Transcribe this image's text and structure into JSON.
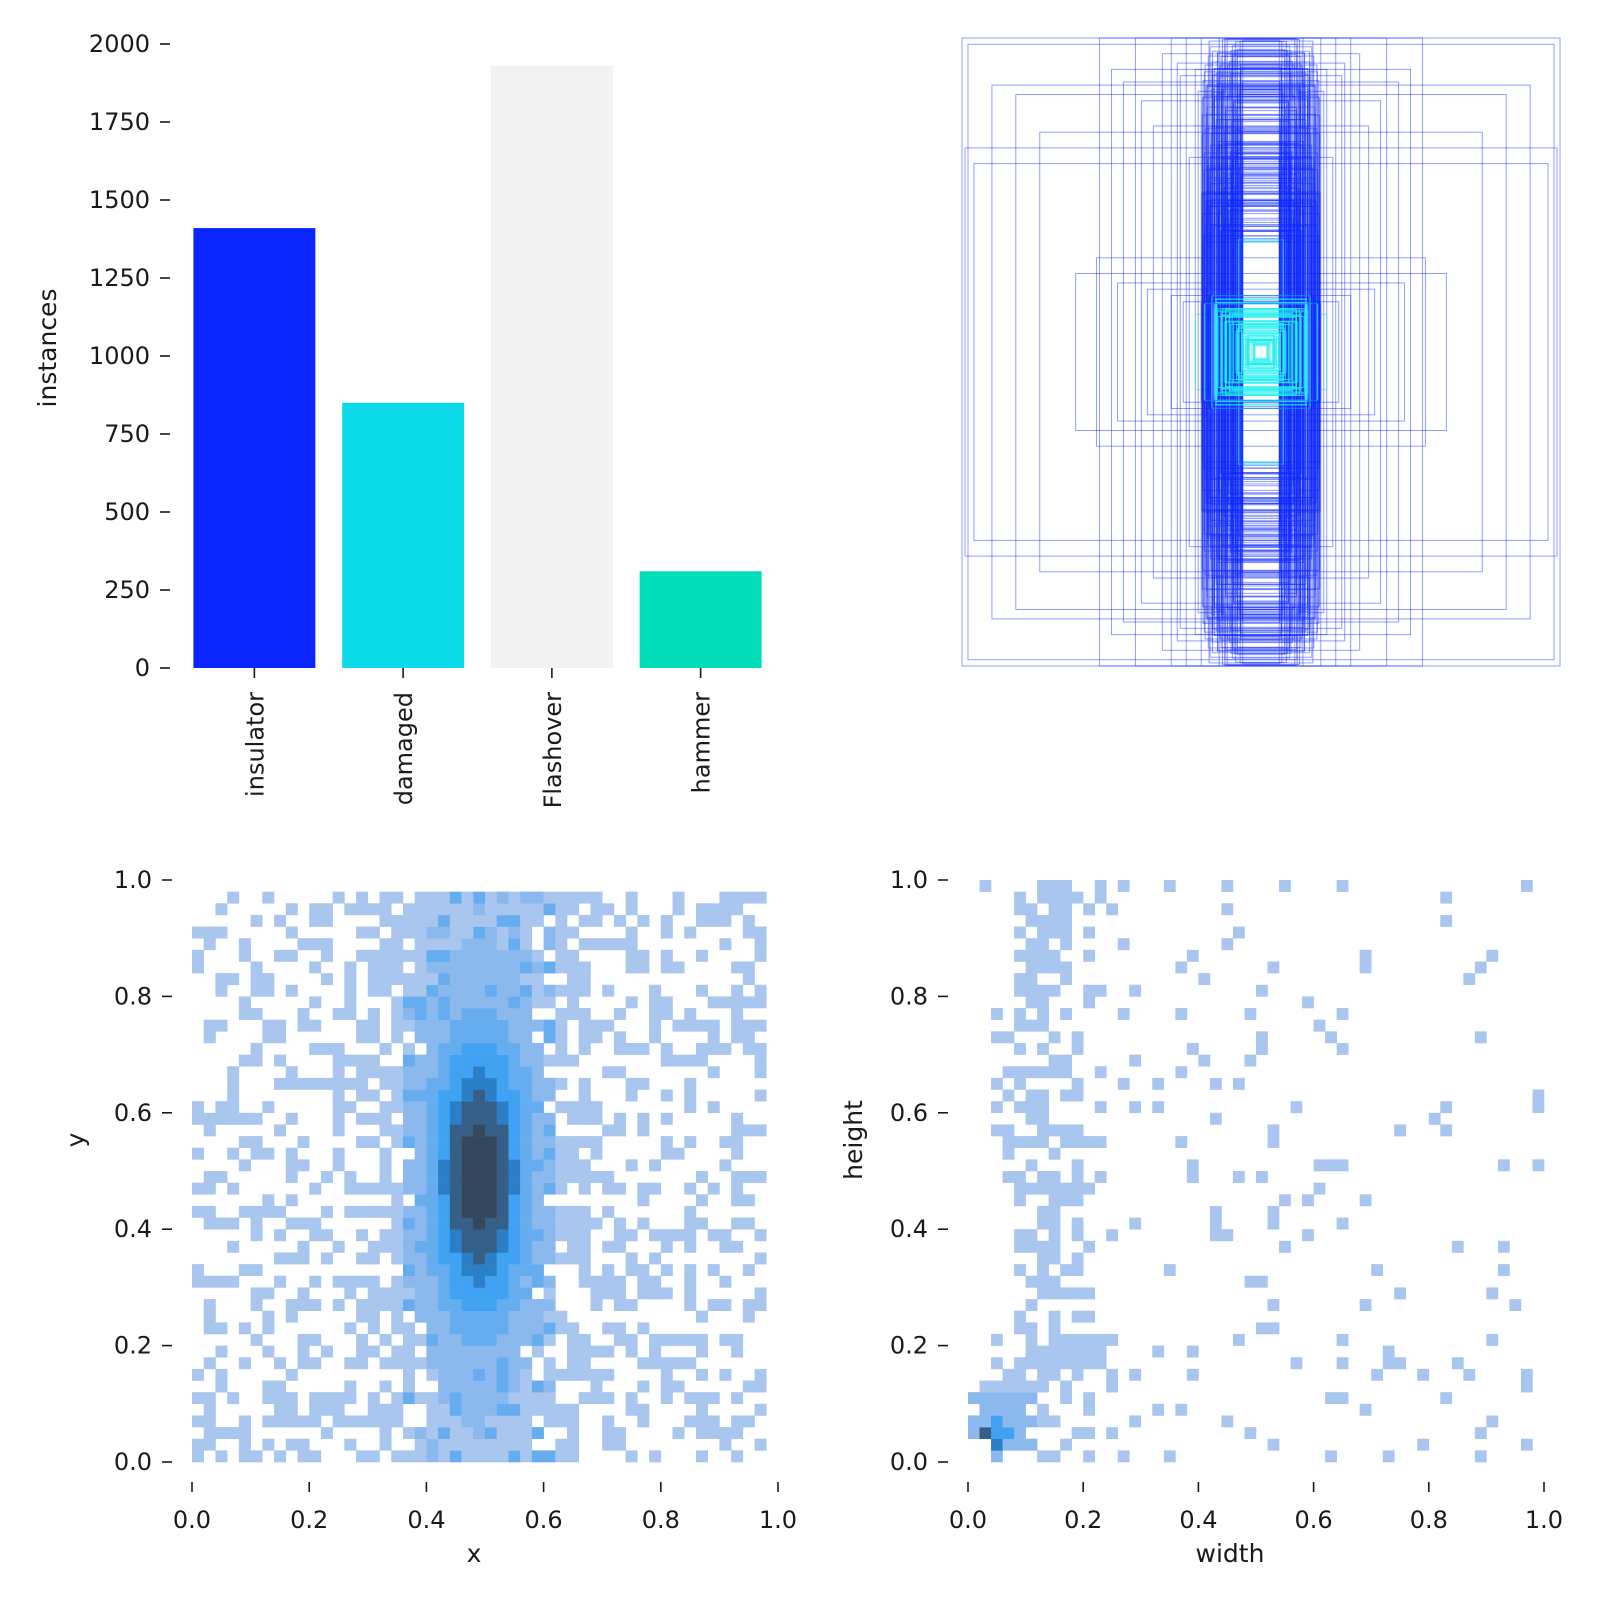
{
  "chart_data": [
    {
      "type": "bar",
      "panel": "class-counts",
      "title": "",
      "xlabel": "",
      "ylabel": "instances",
      "categories": [
        "insulator",
        "damaged",
        "Flashover",
        "hammer"
      ],
      "values": [
        1410,
        850,
        1930,
        310
      ],
      "colors": [
        "#0a25ff",
        "#0bdbe9",
        "#f2f2f2",
        "#00ddb8"
      ],
      "ylim": [
        0,
        2000
      ],
      "yticks": [
        0,
        250,
        500,
        750,
        1000,
        1250,
        1500,
        1750,
        2000
      ],
      "ytick_labels": [
        "0",
        "250",
        "500",
        "750",
        "1000",
        "1250",
        "1500",
        "1750",
        "2000"
      ]
    },
    {
      "type": "box-overlay",
      "panel": "label-boxes",
      "title": "",
      "note": "bounding boxes of all labels drawn centered",
      "box_color": "#0a25ff",
      "center_color": "#22f0ef",
      "boxes_wh": [
        [
          1.0,
          1.0
        ],
        [
          0.98,
          0.98
        ],
        [
          0.9,
          0.85
        ],
        [
          0.82,
          0.82
        ],
        [
          0.96,
          0.6
        ],
        [
          0.99,
          0.65
        ],
        [
          0.74,
          0.7
        ],
        [
          0.54,
          1.0
        ],
        [
          0.42,
          1.0
        ],
        [
          0.3,
          1.0
        ],
        [
          0.25,
          1.0
        ],
        [
          0.2,
          1.0
        ],
        [
          0.14,
          1.0
        ],
        [
          0.12,
          0.98
        ],
        [
          0.1,
          0.96
        ],
        [
          0.08,
          0.94
        ],
        [
          0.28,
          0.92
        ],
        [
          0.22,
          0.9
        ],
        [
          0.16,
          0.88
        ],
        [
          0.13,
          0.85
        ],
        [
          0.11,
          0.82
        ],
        [
          0.09,
          0.8
        ],
        [
          0.18,
          0.78
        ],
        [
          0.15,
          0.74
        ],
        [
          0.12,
          0.7
        ],
        [
          0.1,
          0.66
        ],
        [
          0.24,
          0.62
        ],
        [
          0.19,
          0.58
        ],
        [
          0.14,
          0.54
        ],
        [
          0.4,
          0.8
        ],
        [
          0.36,
          0.72
        ],
        [
          0.5,
          0.9
        ],
        [
          0.46,
          0.86
        ],
        [
          0.33,
          0.95
        ],
        [
          0.27,
          0.88
        ],
        [
          0.21,
          0.83
        ],
        [
          0.55,
          0.3
        ],
        [
          0.62,
          0.25
        ],
        [
          0.48,
          0.22
        ],
        [
          0.38,
          0.2
        ],
        [
          0.3,
          0.18
        ],
        [
          0.26,
          0.16
        ],
        [
          0.22,
          0.12
        ],
        [
          0.18,
          0.1
        ],
        [
          0.15,
          0.08
        ],
        [
          0.12,
          0.07
        ],
        [
          0.1,
          0.06
        ],
        [
          0.08,
          0.05
        ],
        [
          0.06,
          0.04
        ],
        [
          0.05,
          0.035
        ],
        [
          0.04,
          0.03
        ],
        [
          0.03,
          0.025
        ],
        [
          0.02,
          0.02
        ]
      ]
    },
    {
      "type": "heatmap",
      "panel": "xy-distribution",
      "title": "",
      "xlabel": "x",
      "ylabel": "y",
      "xlim": [
        0.0,
        1.0
      ],
      "ylim": [
        0.0,
        1.0
      ],
      "bins": 50,
      "xticks": [
        0.0,
        0.2,
        0.4,
        0.6,
        0.8,
        1.0
      ],
      "yticks": [
        0.0,
        0.2,
        0.4,
        0.6,
        0.8,
        1.0
      ],
      "xtick_labels": [
        "0.0",
        "0.2",
        "0.4",
        "0.6",
        "0.8",
        "1.0"
      ],
      "ytick_labels": [
        "0.0",
        "0.2",
        "0.4",
        "0.6",
        "0.8",
        "1.0"
      ],
      "peak": [
        0.49,
        0.49
      ],
      "spread_x": 0.06,
      "spread_y": 0.18,
      "colors": [
        "#a9c6ef",
        "#8bb9ee",
        "#66adf0",
        "#3fa2f2",
        "#2b7fc6",
        "#355f87",
        "#34475b"
      ]
    },
    {
      "type": "heatmap",
      "panel": "width-height-distribution",
      "title": "",
      "xlabel": "width",
      "ylabel": "height",
      "xlim": [
        0.0,
        1.0
      ],
      "ylim": [
        0.0,
        1.0
      ],
      "bins": 50,
      "xticks": [
        0.0,
        0.2,
        0.4,
        0.6,
        0.8,
        1.0
      ],
      "yticks": [
        0.0,
        0.2,
        0.4,
        0.6,
        0.8,
        1.0
      ],
      "xtick_labels": [
        "0.0",
        "0.2",
        "0.4",
        "0.6",
        "0.8",
        "1.0"
      ],
      "ytick_labels": [
        "0.0",
        "0.2",
        "0.4",
        "0.6",
        "0.8",
        "1.0"
      ],
      "peak": [
        0.02,
        0.03
      ],
      "colors": [
        "#a9c6ef",
        "#8bb9ee",
        "#66adf0",
        "#3fa2f2",
        "#2b7fc6",
        "#355f87",
        "#34475b"
      ]
    }
  ]
}
